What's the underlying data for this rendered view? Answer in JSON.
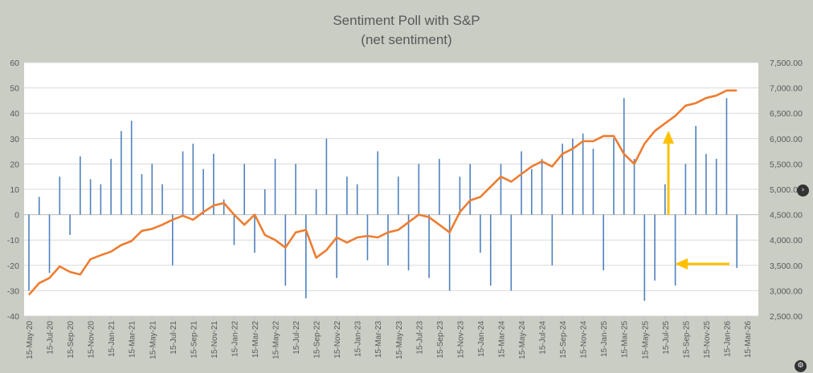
{
  "chart_data": {
    "type": "bar+line",
    "title": "Sentiment Poll with S&P",
    "subtitle": "(net sentiment)",
    "primary_axis": {
      "ylim": [
        -40,
        60
      ],
      "ticks": [
        60,
        50,
        40,
        30,
        20,
        10,
        0,
        -10,
        -20,
        -30,
        -40
      ]
    },
    "secondary_axis": {
      "ylim": [
        2500,
        7500
      ],
      "tick_labels": [
        "7,500.00",
        "7,000.00",
        "6,500.00",
        "6,000.00",
        "5,500.00",
        "5,000.00",
        "4,500.00",
        "4,000.00",
        "3,500.00",
        "3,000.00",
        "2,500.00"
      ],
      "tick_values": [
        7500,
        7000,
        6500,
        6000,
        5500,
        5000,
        4500,
        4000,
        3500,
        3000,
        2500
      ]
    },
    "x_tick_labels": [
      "15-May-20",
      "15-Jul-20",
      "15-Sep-20",
      "15-Nov-20",
      "15-Jan-21",
      "15-Mar-21",
      "15-May-21",
      "15-Jul-21",
      "15-Sep-21",
      "15-Nov-21",
      "15-Jan-22",
      "15-Mar-22",
      "15-May-22",
      "15-Jul-22",
      "15-Sep-22",
      "15-Nov-22",
      "15-Jan-23",
      "15-Mar-23",
      "15-May-23",
      "15-Jul-23",
      "15-Sep-23",
      "15-Nov-23",
      "15-Jan-24",
      "15-Mar-24",
      "15-May-24",
      "15-Jul-24",
      "15-Sep-24",
      "15-Nov-24",
      "15-Jan-25",
      "15-Mar-25",
      "15-May-25",
      "15-Jul-25",
      "15-Sep-25",
      "15-Nov-25",
      "15-Jan-26",
      "15-Mar-26"
    ],
    "series": [
      {
        "kind": "bar",
        "axis": "primary",
        "color": "#4f81bd",
        "x": [
          "15-May-20",
          "15-Jun-20",
          "15-Jul-20",
          "15-Aug-20",
          "15-Sep-20",
          "15-Oct-20",
          "15-Nov-20",
          "15-Dec-20",
          "15-Jan-21",
          "15-Feb-21",
          "15-Mar-21",
          "15-Apr-21",
          "15-May-21",
          "15-Jun-21",
          "15-Jul-21",
          "15-Aug-21",
          "15-Sep-21",
          "15-Oct-21",
          "15-Nov-21",
          "15-Dec-21",
          "15-Jan-22",
          "15-Feb-22",
          "15-Mar-22",
          "15-Apr-22",
          "15-May-22",
          "15-Jun-22",
          "15-Jul-22",
          "15-Aug-22",
          "15-Sep-22",
          "15-Oct-22",
          "15-Nov-22",
          "15-Dec-22",
          "15-Jan-23",
          "15-Feb-23",
          "15-Mar-23",
          "15-Apr-23",
          "15-May-23",
          "15-Jun-23",
          "15-Jul-23",
          "15-Aug-23",
          "15-Sep-23",
          "15-Oct-23",
          "15-Nov-23",
          "15-Dec-23",
          "15-Jan-24",
          "15-Feb-24",
          "15-Mar-24",
          "15-Apr-24",
          "15-May-24",
          "15-Jun-24",
          "15-Jul-24",
          "15-Aug-24",
          "15-Sep-24",
          "15-Oct-24",
          "15-Nov-24",
          "15-Dec-24",
          "15-Jan-25",
          "15-Feb-25",
          "15-Mar-25",
          "15-Apr-25",
          "15-May-25",
          "15-Jun-25",
          "15-Jul-25",
          "15-Aug-25",
          "15-Sep-25",
          "15-Oct-25",
          "15-Nov-25",
          "15-Dec-25",
          "15-Jan-26",
          "15-Feb-26"
        ],
        "values": [
          -30,
          7,
          -23,
          15,
          -8,
          23,
          14,
          12,
          22,
          33,
          37,
          16,
          20,
          12,
          -20,
          25,
          28,
          18,
          24,
          6,
          -12,
          20,
          -15,
          10,
          22,
          -28,
          20,
          -33,
          10,
          30,
          -25,
          15,
          12,
          -18,
          25,
          -20,
          15,
          -22,
          20,
          -25,
          22,
          -30,
          15,
          20,
          -15,
          -28,
          20,
          -30,
          25,
          18,
          22,
          -20,
          28,
          30,
          32,
          26,
          -22,
          30,
          46,
          22,
          -34,
          -26,
          12,
          -28,
          20,
          35,
          24,
          22,
          46,
          -21
        ]
      },
      {
        "kind": "line",
        "axis": "secondary",
        "color": "#ed7d31",
        "x": [
          "15-May-20",
          "15-Jun-20",
          "15-Jul-20",
          "15-Aug-20",
          "15-Sep-20",
          "15-Oct-20",
          "15-Nov-20",
          "15-Dec-20",
          "15-Jan-21",
          "15-Feb-21",
          "15-Mar-21",
          "15-Apr-21",
          "15-May-21",
          "15-Jun-21",
          "15-Jul-21",
          "15-Aug-21",
          "15-Sep-21",
          "15-Oct-21",
          "15-Nov-21",
          "15-Dec-21",
          "15-Jan-22",
          "15-Feb-22",
          "15-Mar-22",
          "15-Apr-22",
          "15-May-22",
          "15-Jun-22",
          "15-Jul-22",
          "15-Aug-22",
          "15-Sep-22",
          "15-Oct-22",
          "15-Nov-22",
          "15-Dec-22",
          "15-Jan-23",
          "15-Feb-23",
          "15-Mar-23",
          "15-Apr-23",
          "15-May-23",
          "15-Jun-23",
          "15-Jul-23",
          "15-Aug-23",
          "15-Sep-23",
          "15-Oct-23",
          "15-Nov-23",
          "15-Dec-23",
          "15-Jan-24",
          "15-Feb-24",
          "15-Mar-24",
          "15-Apr-24",
          "15-May-24",
          "15-Jun-24",
          "15-Jul-24",
          "15-Aug-24",
          "15-Sep-24",
          "15-Oct-24",
          "15-Nov-24",
          "15-Dec-24",
          "15-Jan-25",
          "15-Feb-25",
          "15-Mar-25",
          "15-Apr-25",
          "15-May-25",
          "15-Jun-25",
          "15-Jul-25",
          "15-Aug-25",
          "15-Sep-25",
          "15-Oct-25",
          "15-Nov-25",
          "15-Dec-25",
          "15-Jan-26",
          "15-Feb-26"
        ],
        "values": [
          2920,
          3150,
          3250,
          3480,
          3370,
          3320,
          3620,
          3700,
          3770,
          3900,
          3980,
          4180,
          4220,
          4300,
          4400,
          4480,
          4400,
          4550,
          4680,
          4730,
          4500,
          4300,
          4500,
          4100,
          4000,
          3850,
          4150,
          4200,
          3650,
          3800,
          4050,
          3950,
          4050,
          4080,
          4050,
          4150,
          4200,
          4350,
          4500,
          4450,
          4300,
          4150,
          4550,
          4780,
          4850,
          5050,
          5250,
          5150,
          5300,
          5450,
          5550,
          5450,
          5700,
          5800,
          5950,
          5950,
          6050,
          6050,
          5700,
          5500,
          5900,
          6150,
          6300,
          6450,
          6650,
          6700,
          6800,
          6850,
          6950,
          6950
        ]
      }
    ],
    "annotations": [
      {
        "type": "arrow",
        "direction": "up",
        "color": "#ffc000"
      },
      {
        "type": "arrow",
        "direction": "left",
        "color": "#ffc000"
      }
    ],
    "grid": true,
    "legend": "none"
  },
  "ui": {
    "side_button_icon": "chevron-right-icon",
    "corner_icon": "gear-icon",
    "side_button_glyph": "›",
    "corner_glyph": "⚙"
  }
}
